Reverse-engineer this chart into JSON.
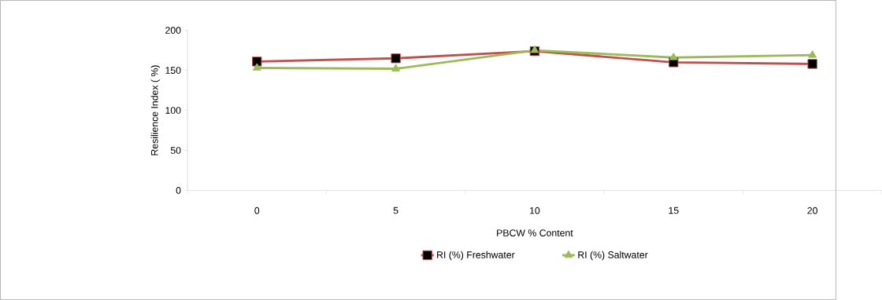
{
  "chart_data": {
    "type": "line",
    "xlabel": "PBCW % Content",
    "ylabel": "Resilience Index ( %)",
    "categories": [
      "0",
      "5",
      "10",
      "15",
      "20"
    ],
    "series": [
      {
        "name": "RI (%) Freshwater",
        "color": "#c0504d",
        "marker": "square",
        "values": [
          161,
          165,
          174,
          160,
          158
        ]
      },
      {
        "name": "RI (%) Saltwater",
        "color": "#9bbb59",
        "marker": "triangle",
        "values": [
          153,
          152,
          175,
          166,
          169
        ]
      }
    ],
    "ylim": [
      0,
      200
    ],
    "yticks": [
      0,
      50,
      100,
      150,
      200
    ],
    "grid": false,
    "legend": "bottom"
  }
}
